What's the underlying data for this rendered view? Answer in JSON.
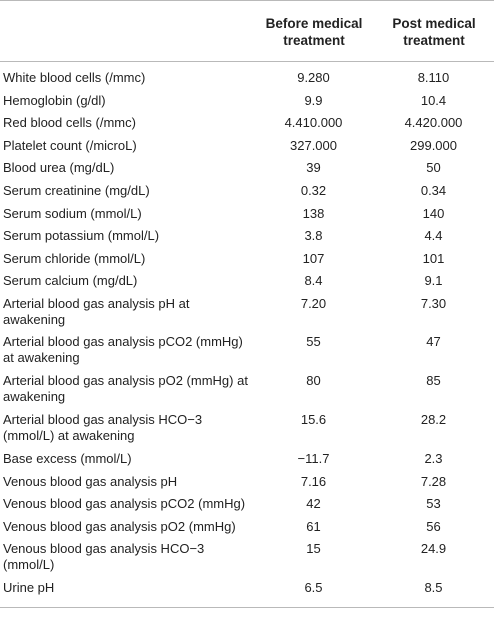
{
  "table": {
    "headers": [
      "",
      "Before medical treatment",
      "Post medical treatment"
    ],
    "rows": [
      {
        "label": "White blood cells (/mmc)",
        "before": "9.280",
        "post": "8.110"
      },
      {
        "label": "Hemoglobin (g/dl)",
        "before": "9.9",
        "post": "10.4"
      },
      {
        "label": "Red blood cells (/mmc)",
        "before": "4.410.000",
        "post": "4.420.000"
      },
      {
        "label": "Platelet count (/microL)",
        "before": "327.000",
        "post": "299.000"
      },
      {
        "label": "Blood urea (mg/dL)",
        "before": "39",
        "post": "50"
      },
      {
        "label": "Serum creatinine (mg/dL)",
        "before": "0.32",
        "post": "0.34"
      },
      {
        "label": "Serum sodium (mmol/L)",
        "before": "138",
        "post": "140"
      },
      {
        "label": "Serum potassium (mmol/L)",
        "before": "3.8",
        "post": "4.4"
      },
      {
        "label": "Serum chloride (mmol/L)",
        "before": "107",
        "post": "101"
      },
      {
        "label": "Serum calcium (mg/dL)",
        "before": "8.4",
        "post": "9.1"
      },
      {
        "label": "Arterial blood gas analysis pH at awakening",
        "before": "7.20",
        "post": "7.30"
      },
      {
        "label": "Arterial blood gas analysis pCO2 (mmHg) at awakening",
        "before": "55",
        "post": "47"
      },
      {
        "label": "Arterial blood gas analysis pO2 (mmHg) at awakening",
        "before": "80",
        "post": "85"
      },
      {
        "label": "Arterial blood gas analysis HCO−3 (mmol/L) at awakening",
        "before": "15.6",
        "post": "28.2"
      },
      {
        "label": "Base excess (mmol/L)",
        "before": "−11.7",
        "post": "2.3"
      },
      {
        "label": "Venous blood gas analysis pH",
        "before": "7.16",
        "post": "7.28"
      },
      {
        "label": "Venous blood gas analysis pCO2 (mmHg)",
        "before": "42",
        "post": "53"
      },
      {
        "label": "Venous blood gas analysis pO2 (mmHg)",
        "before": "61",
        "post": "56"
      },
      {
        "label": "Venous blood gas analysis HCO−3 (mmol/L)",
        "before": "15",
        "post": "24.9"
      },
      {
        "label": "Urine pH",
        "before": "6.5",
        "post": "8.5"
      }
    ]
  }
}
